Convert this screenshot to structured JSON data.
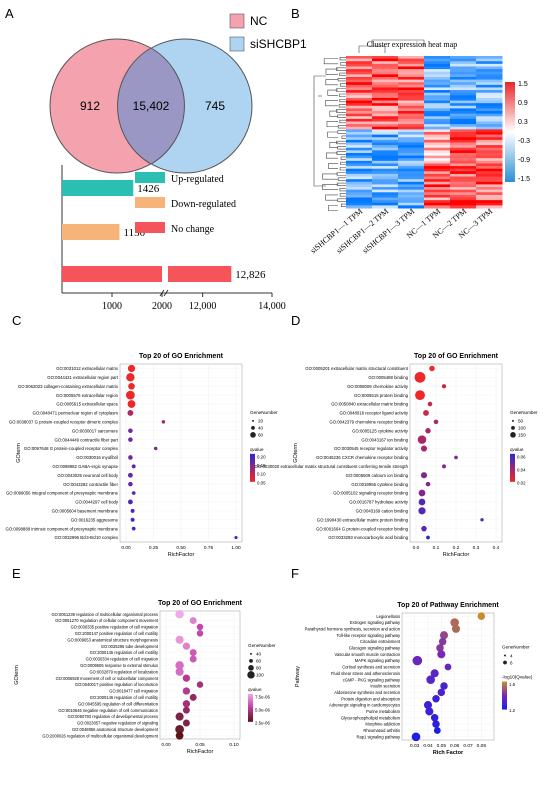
{
  "panels": {
    "A": {
      "letter": "A",
      "venn": {
        "left_only": "912",
        "overlap": "15,402",
        "right_only": "745"
      },
      "legend": [
        {
          "label": "NC",
          "color": "#f4a3ae"
        },
        {
          "label": "siSHCBP1",
          "color": "#aed4f2"
        }
      ],
      "bar_legend": [
        {
          "label": "Up-regulated",
          "color": "#2bbfb3"
        },
        {
          "label": "Down-regulated",
          "color": "#f6b47b"
        },
        {
          "label": "No change",
          "color": "#f5545a"
        }
      ]
    },
    "B": {
      "letter": "B",
      "title": "Cluster expression heat map",
      "columns": [
        "siSHCBP1—1 TPM",
        "siSHCBP1—2 TPM",
        "siSHCBP1—3 TPM",
        "NC—1 TPM",
        "NC—2 TPM",
        "NC—3 TPM"
      ],
      "scale_labels": [
        "1.5",
        "0.9",
        "0.3",
        "-0.3",
        "-0.9",
        "-1.5"
      ]
    },
    "C": {
      "letter": "C",
      "title": "Top 20 of GO Enrichment",
      "ylabel": "GOterm",
      "xlabel": "RichFactor",
      "xticks": [
        "0.00",
        "0.25",
        "0.50",
        "0.75",
        "1.00"
      ],
      "legend_size_title": "GeneNumber",
      "legend_sizes": [
        "20",
        "40",
        "60"
      ],
      "legend_color_title": "qvalue",
      "legend_colors": [
        "0.20",
        "0.15",
        "0.10",
        "0.05"
      ]
    },
    "D": {
      "letter": "D",
      "title": "Top 20 of GO Enrichment",
      "ylabel": "GOterm",
      "xlabel": "RichFactor",
      "xticks": [
        "0.0",
        "0.1",
        "0.2",
        "0.3",
        "0.4"
      ],
      "legend_size_title": "GeneNumber",
      "legend_sizes": [
        "50",
        "100",
        "150"
      ],
      "legend_color_title": "qvalue",
      "legend_colors": [
        "0.06",
        "0.04",
        "0.02"
      ]
    },
    "E": {
      "letter": "E",
      "title": "Top 20 of GO Enrichment",
      "ylabel": "GOterm",
      "xlabel": "RichFactor",
      "xticks": [
        "0.00",
        "0.05",
        "0.10"
      ],
      "legend_size_title": "GeneNumber",
      "legend_sizes": [
        "40",
        "60",
        "80",
        "100"
      ],
      "legend_color_title": "qvalue",
      "legend_colors": [
        "7.5e-06",
        "5.0e-06",
        "2.5e-06"
      ]
    },
    "F": {
      "letter": "F",
      "title": "Top 20 of Pathway Enrichment",
      "ylabel": "Pathway",
      "xlabel": "Rich Factor",
      "xticks": [
        "0.03",
        "0.04",
        "0.05",
        "0.06",
        "0.07",
        "0.08"
      ],
      "legend_size_title": "GeneNumber",
      "legend_sizes": [
        "4",
        "6"
      ],
      "legend_color_title": "-log10(Qvalue)",
      "legend_colors": [
        "1.5",
        "1.2"
      ]
    }
  },
  "chart_data": [
    {
      "type": "bar",
      "panel": "A",
      "categories": [
        "Up-regulated",
        "Down-regulated",
        "No change"
      ],
      "values": [
        1426,
        1150,
        12826
      ],
      "value_labels": [
        "1426",
        "1150",
        "12,826"
      ],
      "xticks": [
        "1000",
        "2000",
        "12,000",
        "14,000"
      ],
      "axis_break": [
        2000,
        11000
      ]
    },
    {
      "type": "scatter",
      "panel": "C",
      "terms": [
        "GO:0031012 extracellular matrix",
        "GO:0044421 extracellular region part",
        "GO:0062023 collagen-containing extracellular matrix",
        "GO:0005576 extracellular region",
        "GO:0005615 extracellular space",
        "GO:0048471 perinuclear region of cytoplasm",
        "GO:0038037 G protein-coupled receptor dimeric complex",
        "GO:0030017 sarcomere",
        "GO:0044449 contractile fiber part",
        "GO:0097648 G protein-coupled receptor complex",
        "GO:0030016 myofibril",
        "GO:0098982 GABA-ergic synapse",
        "GO:0043025 neuronal cell body",
        "GO:0043292 contractile fiber",
        "GO:0099056 integral component of presynaptic membrane",
        "GO:0044297 cell body",
        "GO:0005604 basement membrane",
        "GO:0016235 aggresome",
        "GO:0098889 intrinsic component of presynaptic membrane",
        "GO:0032996 Bcl3-Bcl10 complex"
      ],
      "x": [
        0.05,
        0.04,
        0.05,
        0.04,
        0.05,
        0.04,
        0.34,
        0.04,
        0.04,
        0.27,
        0.04,
        0.07,
        0.04,
        0.04,
        0.07,
        0.04,
        0.06,
        0.06,
        0.07,
        1.0
      ],
      "gene_number": [
        40,
        60,
        30,
        70,
        50,
        20,
        2,
        8,
        8,
        2,
        8,
        4,
        10,
        8,
        3,
        10,
        4,
        4,
        3,
        1
      ],
      "qvalue": [
        0.05,
        0.05,
        0.05,
        0.05,
        0.05,
        0.1,
        0.12,
        0.15,
        0.15,
        0.15,
        0.15,
        0.16,
        0.16,
        0.16,
        0.17,
        0.17,
        0.18,
        0.18,
        0.18,
        0.2
      ]
    },
    {
      "type": "scatter",
      "panel": "D",
      "terms": [
        "GO:0005201 extracellular matrix structural constituent",
        "GO:0005488 binding",
        "GO:0008009 chemokine activity",
        "GO:0005515 protein binding",
        "GO:0050840 extracellular matrix binding",
        "GO:0048018 receptor ligand activity",
        "GO:0042379 chemokine receptor binding",
        "GO:0005125 cytokine activity",
        "GO:0043167 ion binding",
        "GO:0030545 receptor regulator activity",
        "GO:0045236 CXCR chemokine receptor binding",
        "GO:0030020 extracellular matrix structural constituent conferring tensile strength",
        "GO:0005509 calcium ion binding",
        "GO:0019955 cytokine binding",
        "GO:0005102 signaling receptor binding",
        "GO:0016787 hydrolase activity",
        "GO:0043169 cation binding",
        "GO:1990430 extracellular matrix protein binding",
        "GO:0001664 G protein-coupled receptor binding",
        "GO:0033293 monocarboxylic acid binding"
      ],
      "x": [
        0.08,
        0.02,
        0.14,
        0.02,
        0.07,
        0.05,
        0.1,
        0.06,
        0.03,
        0.04,
        0.2,
        0.14,
        0.04,
        0.06,
        0.03,
        0.03,
        0.03,
        0.33,
        0.04,
        0.06
      ],
      "gene_number": [
        20,
        150,
        8,
        120,
        10,
        25,
        10,
        20,
        80,
        30,
        3,
        5,
        30,
        10,
        40,
        40,
        50,
        2,
        20,
        4
      ],
      "qvalue": [
        0.02,
        0.02,
        0.03,
        0.02,
        0.03,
        0.03,
        0.04,
        0.04,
        0.04,
        0.04,
        0.05,
        0.05,
        0.05,
        0.05,
        0.05,
        0.06,
        0.06,
        0.06,
        0.06,
        0.07
      ]
    },
    {
      "type": "scatter",
      "panel": "E",
      "terms": [
        "GO:0051239 regulation of multicellular organismal process",
        "GO:0051270 regulation of cellular component movement",
        "GO:0030335 positive regulation of cell migration",
        "GO:2000147 positive regulation of cell motility",
        "GO:0009653 anatomical structure morphogenesis",
        "GO:0035295 tube development",
        "GO:2000145 regulation of cell motility",
        "GO:0030334 regulation of cell migration",
        "GO:0009605 response to external stimulus",
        "GO:0032879 regulation of localization",
        "GO:0006928 movement of cell or subcellular component",
        "GO:0040017 positive regulation of locomotion",
        "GO:0018477 cell migration",
        "GO:2000146 regulation of cell motility",
        "GO:0045595 regulation of cell differentiation",
        "GO:0010646 negative regulation of cell communication",
        "GO:0050793 regulation of developmental process",
        "GO:0023057 negative regulation of signaling",
        "GO:0048856 anatomical structure development",
        "GO:2000026 regulation of multicellular organismal development"
      ],
      "x": [
        0.02,
        0.04,
        0.05,
        0.05,
        0.02,
        0.03,
        0.04,
        0.04,
        0.02,
        0.02,
        0.03,
        0.05,
        0.03,
        0.04,
        0.03,
        0.03,
        0.02,
        0.03,
        0.02,
        0.02
      ],
      "gene_number": [
        90,
        50,
        40,
        40,
        80,
        60,
        50,
        50,
        90,
        80,
        60,
        40,
        60,
        50,
        60,
        50,
        80,
        50,
        100,
        70
      ],
      "qvalue": [
        7.5e-06,
        6.5e-06,
        5e-06,
        5e-06,
        7e-06,
        6.5e-06,
        5.5e-06,
        5.5e-06,
        6e-06,
        6e-06,
        4.5e-06,
        4e-06,
        4.5e-06,
        3.5e-06,
        4e-06,
        3.5e-06,
        3e-06,
        3e-06,
        2.5e-06,
        2e-06
      ]
    },
    {
      "type": "scatter",
      "panel": "F",
      "terms": [
        "Legionellosis",
        "Estrogen signaling pathway",
        "Parathyroid hormone synthesis, secretion and action",
        "Toll-like receptor signaling pathway",
        "Circadian entrainment",
        "Glucagon signaling pathway",
        "Vascular smooth muscle contraction",
        "MAPK signaling pathway",
        "Cortisol synthesis and secretion",
        "Fluid shear stress and atherosclerosis",
        "cGMP - PKG signaling pathway",
        "Insulin secretion",
        "Aldosterone synthesis and secretion",
        "Protein digestion and absorption",
        "Adrenergic signaling in cardiomyocytes",
        "Purine metabolism",
        "Glycerophospholipid metabolism",
        "Morphine addiction",
        "Rheumatoid arthritis",
        "Rap1 signaling pathway"
      ],
      "x": [
        0.08,
        0.06,
        0.061,
        0.052,
        0.051,
        0.049,
        0.05,
        0.032,
        0.055,
        0.045,
        0.042,
        0.052,
        0.05,
        0.046,
        0.04,
        0.041,
        0.045,
        0.046,
        0.047,
        0.031
      ],
      "gene_number": [
        4,
        6,
        5,
        5,
        4,
        4,
        5,
        8,
        3,
        5,
        6,
        4,
        4,
        4,
        5,
        5,
        4,
        4,
        3,
        6
      ],
      "qvalue": [
        1.6,
        1.5,
        1.5,
        1.4,
        1.35,
        1.35,
        1.3,
        1.25,
        1.25,
        1.2,
        1.2,
        1.15,
        1.15,
        1.1,
        1.1,
        1.1,
        1.05,
        1.05,
        1.0,
        1.0
      ]
    }
  ]
}
